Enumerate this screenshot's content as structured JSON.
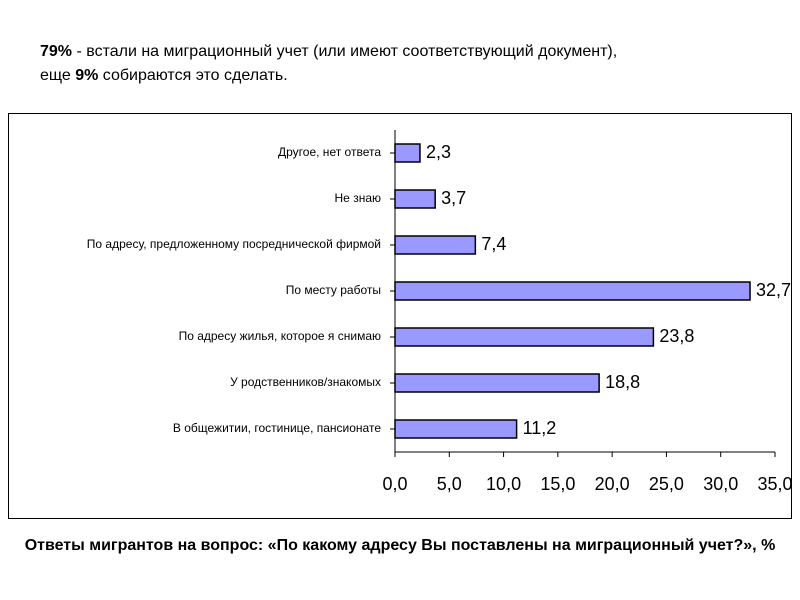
{
  "header": {
    "parts": [
      "79%",
      " - встали на миграционный учет (или имеют соответствующий документ),",
      "еще ",
      "9%",
      " собираются это сделать."
    ]
  },
  "chart_data": {
    "type": "bar",
    "orientation": "horizontal",
    "caption": "Ответы мигрантов на вопрос: «По какому адресу Вы поставлены на миграционный учет?», %",
    "categories": [
      "Другое, нет ответа",
      "Не знаю",
      "По адресу, предложенному посреднической фирмой",
      "По месту работы",
      "По адресу жилья, которое я снимаю",
      "У родственников/знакомых",
      "В общежитии, гостинице, пансионате"
    ],
    "values": [
      2.3,
      3.7,
      7.4,
      32.7,
      23.8,
      18.8,
      11.2
    ],
    "value_labels": [
      "2,3",
      "3,7",
      "7,4",
      "32,7",
      "23,8",
      "18,8",
      "11,2"
    ],
    "color": "#9999ff",
    "xlim": [
      0,
      35
    ],
    "xticks": [
      {
        "value": 0,
        "label": "0,0"
      },
      {
        "value": 5,
        "label": "5,0"
      },
      {
        "value": 10,
        "label": "10,0"
      },
      {
        "value": 15,
        "label": "15,0"
      },
      {
        "value": 20,
        "label": "20,0"
      },
      {
        "value": 25,
        "label": "25,0"
      },
      {
        "value": 30,
        "label": "30,0"
      },
      {
        "value": 35,
        "label": "35,0"
      }
    ],
    "grid": false
  }
}
